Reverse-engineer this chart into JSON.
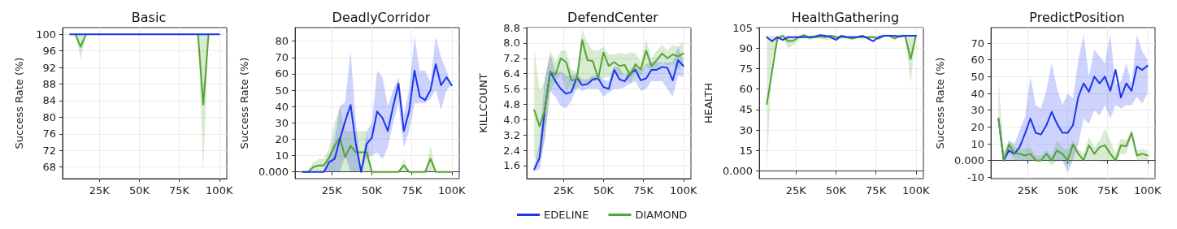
{
  "chart_data": [
    {
      "type": "line",
      "title": "Basic",
      "ylabel": "Success Rate (%)",
      "x": [
        6700,
        10000,
        13300,
        16700,
        20000,
        23300,
        26700,
        30000,
        33300,
        36700,
        40000,
        43300,
        46700,
        50000,
        53300,
        56700,
        60000,
        63300,
        66700,
        70000,
        73300,
        76700,
        80000,
        83300,
        86700,
        90000,
        93300,
        96700,
        100000
      ],
      "xlim": [
        2000,
        104700
      ],
      "xticks": [
        {
          "value": 25000,
          "label": "25K"
        },
        {
          "value": 50000,
          "label": "50K"
        },
        {
          "value": 75000,
          "label": "75K"
        },
        {
          "value": 100000,
          "label": "100K"
        }
      ],
      "ylim": [
        65.2,
        101.6
      ],
      "yticks": [
        68,
        72,
        76,
        80,
        84,
        88,
        92,
        96,
        100
      ],
      "grid": true,
      "marker": "none",
      "line_style": "solid",
      "series": [
        {
          "color": "#52a532",
          "values": [
            null,
            100,
            97,
            100,
            null,
            null,
            null,
            null,
            null,
            null,
            null,
            null,
            null,
            null,
            null,
            null,
            null,
            null,
            null,
            null,
            null,
            null,
            null,
            null,
            100,
            83,
            100,
            null,
            null
          ],
          "lower": [
            100,
            100,
            94,
            100,
            100,
            100,
            100,
            100,
            100,
            100,
            100,
            100,
            100,
            100,
            100,
            100,
            100,
            100,
            100,
            100,
            100,
            100,
            100,
            100,
            100,
            67,
            100,
            100,
            100
          ],
          "upper": [
            100,
            100,
            100,
            100,
            100,
            100,
            100,
            100,
            100,
            100,
            100,
            100,
            100,
            100,
            100,
            100,
            100,
            100,
            100,
            100,
            100,
            100,
            100,
            100,
            100,
            100,
            100,
            100,
            100
          ]
        },
        {
          "color": "#1a35f0",
          "values": [
            100,
            100,
            100,
            100,
            100,
            100,
            100,
            100,
            100,
            100,
            100,
            100,
            100,
            100,
            100,
            100,
            100,
            100,
            100,
            100,
            100,
            100,
            100,
            100,
            100,
            100,
            100,
            100,
            100
          ]
        }
      ]
    },
    {
      "type": "line",
      "title": "DeadlyCorridor",
      "ylabel": "Success Rate (%)",
      "x": [
        6700,
        10000,
        13300,
        16700,
        20000,
        23300,
        26700,
        30000,
        33300,
        36700,
        40000,
        43300,
        46700,
        50000,
        53300,
        56700,
        60000,
        63300,
        66700,
        70000,
        73300,
        76700,
        80000,
        83300,
        86700,
        90000,
        93300,
        96700,
        100000
      ],
      "xlim": [
        2000,
        104700
      ],
      "xticks": [
        {
          "value": 25000,
          "label": "25K"
        },
        {
          "value": 50000,
          "label": "50K"
        },
        {
          "value": 75000,
          "label": "75K"
        },
        {
          "value": 100000,
          "label": "100K"
        }
      ],
      "ylim": [
        -4.1,
        88.3
      ],
      "yticks": [
        {
          "value": 0,
          "label": "0.000"
        },
        10,
        20,
        30,
        40,
        50,
        60,
        70,
        80
      ],
      "grid": true,
      "marker": "none",
      "line_style": "solid",
      "series": [
        {
          "color": "#52a532",
          "values": [
            0,
            0,
            3,
            4,
            4,
            9,
            16,
            21,
            9,
            16,
            12,
            12,
            12,
            0,
            0,
            0,
            0,
            0,
            0,
            4,
            0,
            0,
            0,
            0,
            8,
            0,
            0,
            0,
            0
          ],
          "lower": [
            0,
            0,
            0,
            0,
            0,
            0,
            0,
            0,
            0,
            0,
            0,
            0,
            0,
            0,
            0,
            0,
            0,
            0,
            0,
            0,
            0,
            0,
            0,
            0,
            0,
            0,
            0,
            0,
            0
          ],
          "upper": [
            0,
            0,
            6,
            8,
            8,
            15,
            30,
            40,
            25,
            25,
            25,
            25,
            25,
            0,
            0,
            0,
            0,
            0,
            0,
            8,
            0,
            0,
            0,
            0,
            16,
            0,
            0,
            0,
            0
          ]
        },
        {
          "color": "#1a35f0",
          "values": [
            0,
            0,
            0,
            0,
            0,
            6,
            8,
            20,
            31,
            41,
            17,
            0,
            17,
            21,
            37,
            33,
            25,
            40,
            54,
            25,
            37,
            62,
            46,
            44,
            50,
            66,
            53,
            58,
            53
          ],
          "lower": [
            0,
            0,
            0,
            0,
            0,
            0,
            0,
            0,
            10,
            0,
            0,
            0,
            9,
            10,
            12,
            8,
            15,
            30,
            42,
            15,
            25,
            42,
            42,
            42,
            45,
            50,
            38,
            50,
            53
          ],
          "upper": [
            0,
            0,
            0,
            0,
            0,
            10,
            20,
            40,
            43,
            74,
            30,
            0,
            25,
            30,
            62,
            58,
            40,
            50,
            58,
            35,
            50,
            83,
            62,
            62,
            55,
            83,
            70,
            62,
            53
          ]
        }
      ]
    },
    {
      "type": "line",
      "title": "DefendCenter",
      "ylabel": "KILLCOUNT",
      "x": [
        6700,
        10000,
        13300,
        16700,
        20000,
        23300,
        26700,
        30000,
        33300,
        36700,
        40000,
        43300,
        46700,
        50000,
        53300,
        56700,
        60000,
        63300,
        66700,
        70000,
        73300,
        76700,
        80000,
        83300,
        86700,
        90000,
        93300,
        96700,
        100000
      ],
      "xlim": [
        2000,
        104700
      ],
      "xticks": [
        {
          "value": 25000,
          "label": "25K"
        },
        {
          "value": 50000,
          "label": "50K"
        },
        {
          "value": 75000,
          "label": "75K"
        },
        {
          "value": 100000,
          "label": "100K"
        }
      ],
      "ylim": [
        0.92,
        8.8
      ],
      "yticks": [
        1.6,
        2.4,
        3.2,
        {
          "value": 4,
          "label": "4.0"
        },
        4.8,
        5.6,
        6.4,
        7.2,
        {
          "value": 8,
          "label": "8.0"
        },
        8.8
      ],
      "grid": true,
      "marker": "none",
      "line_style": "solid",
      "legend": "bottom",
      "series": [
        {
          "name": "EDELINE",
          "color": "#1a35f0",
          "values": [
            1.4,
            2.0,
            4.5,
            6.5,
            6.0,
            5.6,
            5.35,
            5.45,
            6.2,
            5.8,
            5.85,
            6.1,
            6.15,
            5.7,
            5.6,
            6.6,
            6.1,
            6.0,
            6.4,
            6.6,
            6.05,
            6.15,
            6.6,
            6.6,
            6.75,
            6.7,
            6.05,
            7.1,
            6.8
          ],
          "lower": [
            1.3,
            1.4,
            3.0,
            5.5,
            5.2,
            4.7,
            4.6,
            5.0,
            5.7,
            5.5,
            5.6,
            5.6,
            5.6,
            5.2,
            5.4,
            5.6,
            5.6,
            5.7,
            5.9,
            6.0,
            5.5,
            5.6,
            6.0,
            6.0,
            6.0,
            5.6,
            5.2,
            6.3,
            6.2
          ],
          "upper": [
            1.6,
            2.8,
            6.2,
            7.4,
            6.5,
            6.5,
            6.3,
            6.3,
            6.4,
            6.1,
            6.1,
            6.3,
            6.3,
            6.1,
            6.0,
            6.8,
            6.7,
            6.3,
            6.6,
            6.8,
            6.5,
            6.9,
            7.0,
            7.0,
            7.0,
            7.0,
            7.0,
            7.8,
            7.1
          ]
        },
        {
          "name": "DIAMOND",
          "color": "#52a532",
          "values": [
            4.5,
            3.65,
            4.5,
            6.5,
            6.35,
            7.2,
            7.0,
            6.05,
            6.1,
            8.15,
            7.1,
            7.05,
            6.15,
            7.5,
            6.8,
            7.0,
            6.8,
            6.85,
            6.3,
            6.9,
            6.6,
            7.6,
            6.8,
            7.1,
            7.45,
            7.2,
            7.4,
            7.3,
            7.45
          ],
          "lower": [
            2.0,
            1.8,
            3.0,
            5.5,
            6.0,
            6.4,
            5.5,
            5.8,
            5.5,
            6.0,
            5.8,
            6.0,
            6.0,
            6.2,
            6.2,
            6.5,
            6.3,
            6.3,
            5.8,
            6.5,
            6.3,
            6.8,
            6.5,
            6.7,
            7.0,
            6.8,
            6.9,
            6.6,
            7.0
          ],
          "upper": [
            7.7,
            5.5,
            6.0,
            7.6,
            7.0,
            7.6,
            7.6,
            6.6,
            6.5,
            8.7,
            8.0,
            7.6,
            7.6,
            7.8,
            7.4,
            7.4,
            7.5,
            7.4,
            7.5,
            7.5,
            7.0,
            8.2,
            7.2,
            7.6,
            7.9,
            7.6,
            7.9,
            7.8,
            8.1
          ]
        }
      ]
    },
    {
      "type": "line",
      "title": "HealthGathering",
      "ylabel": "HEALTH",
      "x": [
        6700,
        10000,
        13300,
        16700,
        20000,
        23300,
        26700,
        30000,
        33300,
        36700,
        40000,
        43300,
        46700,
        50000,
        53300,
        56700,
        60000,
        63300,
        66700,
        70000,
        73300,
        76700,
        80000,
        83300,
        86700,
        90000,
        93300,
        96700,
        100000
      ],
      "xlim": [
        2000,
        104700
      ],
      "xticks": [
        {
          "value": 25000,
          "label": "25K"
        },
        {
          "value": 50000,
          "label": "50K"
        },
        {
          "value": 75000,
          "label": "75K"
        },
        {
          "value": 100000,
          "label": "100K"
        }
      ],
      "ylim": [
        -5.6,
        105
      ],
      "yticks": [
        {
          "value": 0,
          "label": "0.000"
        },
        15,
        30,
        45,
        60,
        75,
        90,
        105
      ],
      "grid": true,
      "marker": "none",
      "line_style": "solid",
      "series": [
        {
          "color": "#52a532",
          "values": [
            49,
            73,
            97,
            99,
            95,
            95.5,
            98,
            99.5,
            97.5,
            98,
            98.5,
            98,
            99,
            98,
            98,
            98,
            97,
            98,
            98,
            98,
            98,
            97,
            99,
            99,
            97,
            99,
            99,
            82,
            99
          ],
          "lower": [
            1,
            80,
            95,
            97,
            90,
            92,
            96,
            98,
            96,
            97,
            97,
            96,
            96,
            97,
            97,
            97,
            96,
            97,
            97,
            97,
            97,
            96,
            98,
            98,
            96,
            98,
            98,
            65,
            98
          ],
          "upper": [
            99,
            99,
            99,
            100,
            99,
            98,
            99,
            100,
            99,
            99,
            99,
            99,
            100,
            99,
            99,
            99,
            99,
            99,
            99,
            99,
            99,
            99,
            100,
            100,
            99,
            100,
            100,
            99,
            100
          ]
        },
        {
          "color": "#1a35f0",
          "values": [
            98,
            95,
            98,
            96,
            98,
            98,
            98,
            98,
            98,
            98.5,
            99.5,
            99,
            98,
            96,
            99,
            98,
            98,
            98,
            99,
            97,
            95,
            98,
            99,
            99,
            99,
            98.5,
            99,
            99,
            99
          ]
        }
      ]
    },
    {
      "type": "line",
      "title": "PredictPosition",
      "ylabel": "Success Rate (%)",
      "x": [
        6700,
        10000,
        13300,
        16700,
        20000,
        23300,
        26700,
        30000,
        33300,
        36700,
        40000,
        43300,
        46700,
        50000,
        53300,
        56700,
        60000,
        63300,
        66700,
        70000,
        73300,
        76700,
        80000,
        83300,
        86700,
        90000,
        93300,
        96700,
        100000
      ],
      "xlim": [
        2000,
        104700
      ],
      "xticks": [
        {
          "value": 25000,
          "label": "25K"
        },
        {
          "value": 50000,
          "label": "50K"
        },
        {
          "value": 75000,
          "label": "75K"
        },
        {
          "value": 100000,
          "label": "100K"
        }
      ],
      "ylim": [
        -10.8,
        79.2
      ],
      "yticks": [
        -10,
        {
          "value": 0,
          "label": "0.000"
        },
        10,
        20,
        30,
        40,
        50,
        60,
        70
      ],
      "grid": true,
      "marker": "none",
      "line_style": "solid",
      "series": [
        {
          "color": "#1a35f0",
          "values": [
            25,
            0,
            6,
            4,
            8,
            16,
            25,
            16.5,
            15.5,
            21,
            29,
            22,
            16.5,
            16.5,
            21,
            38,
            46,
            41,
            50,
            46,
            50,
            41.5,
            54,
            37.5,
            46,
            41.5,
            56,
            54,
            56.5
          ],
          "lower": [
            25,
            0,
            0,
            0,
            0,
            0,
            0,
            0,
            0,
            0,
            0,
            0,
            0,
            -7,
            0,
            10,
            25,
            22,
            30,
            27,
            33,
            25,
            33,
            31,
            33,
            33,
            38,
            34,
            40
          ],
          "upper": [
            25,
            2,
            12,
            10,
            18,
            26,
            50,
            33,
            31,
            42,
            58,
            43,
            33,
            40,
            37,
            60,
            75,
            50,
            66,
            62,
            58,
            75,
            45,
            47,
            58,
            45,
            75,
            65,
            60
          ]
        },
        {
          "color": "#52a532",
          "values": [
            25,
            0,
            9.5,
            4.5,
            4,
            3,
            4,
            0,
            0,
            4,
            0,
            6,
            4,
            0,
            9.5,
            4,
            0,
            9,
            4,
            8,
            9,
            4,
            0,
            9,
            8.5,
            16.5,
            3,
            4,
            3
          ],
          "lower": [
            25,
            0,
            5,
            0,
            0,
            0,
            0,
            0,
            0,
            0,
            -3,
            0,
            0,
            -3,
            0,
            0,
            0,
            0,
            0,
            0,
            -1,
            0,
            0,
            4,
            4,
            14,
            0,
            0,
            0
          ],
          "upper": [
            49,
            5,
            12,
            8,
            7,
            7,
            8,
            3,
            3,
            6,
            3,
            12,
            8,
            6,
            12,
            7,
            4,
            14,
            8,
            12,
            19,
            12,
            4,
            13,
            12,
            18,
            6,
            7,
            6
          ]
        }
      ]
    }
  ]
}
